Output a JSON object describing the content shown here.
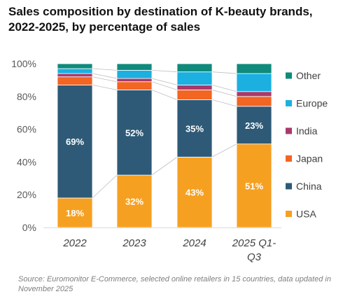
{
  "title": "Sales composition by destination of K-beauty brands, 2022-2025, by percentage of sales",
  "source": "Source: Euromonitor E-Commerce, selected online retailers in 15 countries, data updated in November 2025",
  "chart_data": {
    "type": "bar",
    "stacked": true,
    "title": "Sales composition by destination of K-beauty brands, 2022-2025, by percentage of sales",
    "categories": [
      "2022",
      "2023",
      "2024",
      "2025 Q1-Q3"
    ],
    "category_lines": [
      [
        "2022"
      ],
      [
        "2023"
      ],
      [
        "2024"
      ],
      [
        "2025 Q1-",
        "Q3"
      ]
    ],
    "yticks": [
      "0%",
      "20%",
      "40%",
      "60%",
      "80%",
      "100%"
    ],
    "ylim": [
      0,
      100
    ],
    "grid": false,
    "legend_position": "right",
    "series": [
      {
        "name": "USA",
        "color": "#f6a022",
        "values": [
          18,
          32,
          43,
          51
        ],
        "labels": [
          "18%",
          "32%",
          "43%",
          "51%"
        ]
      },
      {
        "name": "China",
        "color": "#2e5a77",
        "values": [
          69,
          52,
          35,
          23
        ],
        "labels": [
          "69%",
          "52%",
          "35%",
          "23%"
        ]
      },
      {
        "name": "Japan",
        "color": "#f26522",
        "values": [
          5,
          5,
          6,
          6
        ]
      },
      {
        "name": "India",
        "color": "#a83a6b",
        "values": [
          2,
          2,
          3,
          3
        ]
      },
      {
        "name": "Europe",
        "color": "#1bb0e0",
        "values": [
          3,
          5,
          8,
          11
        ]
      },
      {
        "name": "Other",
        "color": "#0f8a7b",
        "values": [
          3,
          4,
          5,
          6
        ]
      }
    ]
  }
}
